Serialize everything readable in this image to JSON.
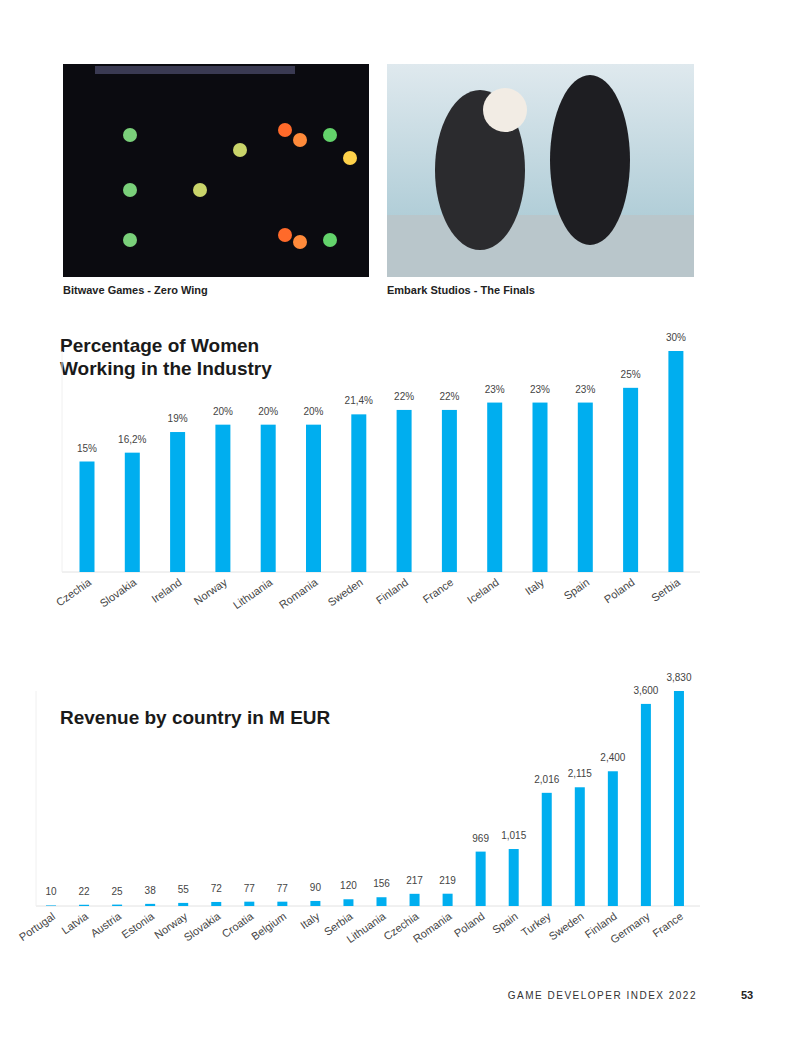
{
  "images": [
    {
      "caption": "Bitwave Games - Zero Wing"
    },
    {
      "caption": "Embark Studios - The Finals"
    }
  ],
  "chart_data": [
    {
      "type": "bar",
      "title": "Percentage of Women Working in the Industry",
      "categories": [
        "Czechia",
        "Slovakia",
        "Ireland",
        "Norway",
        "Lithuania",
        "Romania",
        "Sweden",
        "Finland",
        "France",
        "Iceland",
        "Italy",
        "Spain",
        "Poland",
        "Serbia"
      ],
      "values": [
        15,
        16.2,
        19,
        20,
        20,
        20,
        21.4,
        22,
        22,
        23,
        23,
        23,
        25,
        30
      ],
      "value_labels": [
        "15%",
        "16,2%",
        "19%",
        "20%",
        "20%",
        "20%",
        "21,4%",
        "22%",
        "22%",
        "23%",
        "23%",
        "23%",
        "25%",
        "30%"
      ],
      "color": "#00aeef",
      "ylim": [
        0,
        30
      ],
      "grid": false,
      "data_labels": true,
      "tick_labels": "x"
    },
    {
      "type": "bar",
      "title": "Revenue by country in M EUR",
      "categories": [
        "Portugal",
        "Latvia",
        "Austria",
        "Estonia",
        "Norway",
        "Slovakia",
        "Croatia",
        "Belgium",
        "Italy",
        "Serbia",
        "Lithuania",
        "Czechia",
        "Romania",
        "Poland",
        "Spain",
        "Turkey",
        "Sweden",
        "Finland",
        "Germany",
        "France"
      ],
      "values": [
        10,
        22,
        25,
        38,
        55,
        72,
        77,
        77,
        90,
        120,
        156,
        217,
        219,
        969,
        1015,
        2016,
        2115,
        2400,
        3600,
        3830
      ],
      "value_labels": [
        "10",
        "22",
        "25",
        "38",
        "55",
        "72",
        "77",
        "77",
        "90",
        "120",
        "156",
        "217",
        "219",
        "969",
        "1,015",
        "2,016",
        "2,115",
        "2,400",
        "3,600",
        "3,830"
      ],
      "color": "#00aeef",
      "ylim": [
        0,
        3830
      ],
      "grid": false,
      "data_labels": true,
      "tick_labels": "x"
    }
  ],
  "footer": {
    "text": "GAME DEVELOPER INDEX 2022",
    "page": 53
  }
}
